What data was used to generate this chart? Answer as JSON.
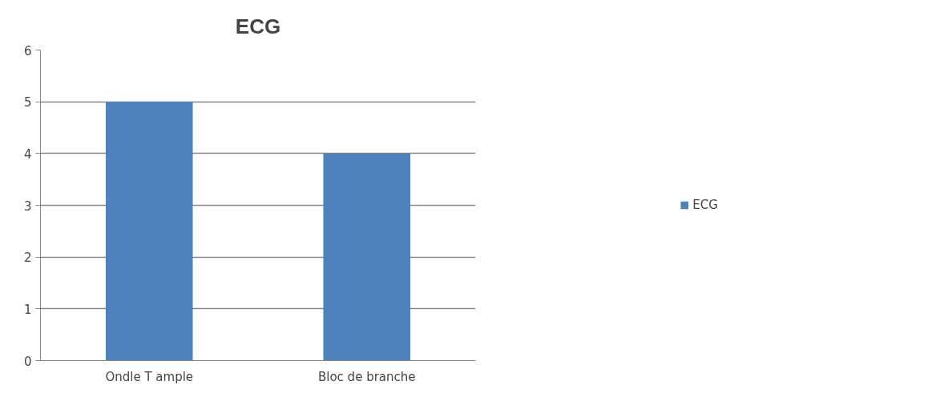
{
  "chart_data": {
    "type": "bar",
    "title": "ECG",
    "categories": [
      "Ondle T ample",
      "Bloc de branche"
    ],
    "series": [
      {
        "name": "ECG",
        "color": "#4f81bd",
        "values": [
          5,
          4
        ]
      }
    ],
    "ylim": [
      0,
      6
    ],
    "yticks": [
      0,
      1,
      2,
      3,
      4,
      5,
      6
    ],
    "grid": "y",
    "legend": "right"
  }
}
